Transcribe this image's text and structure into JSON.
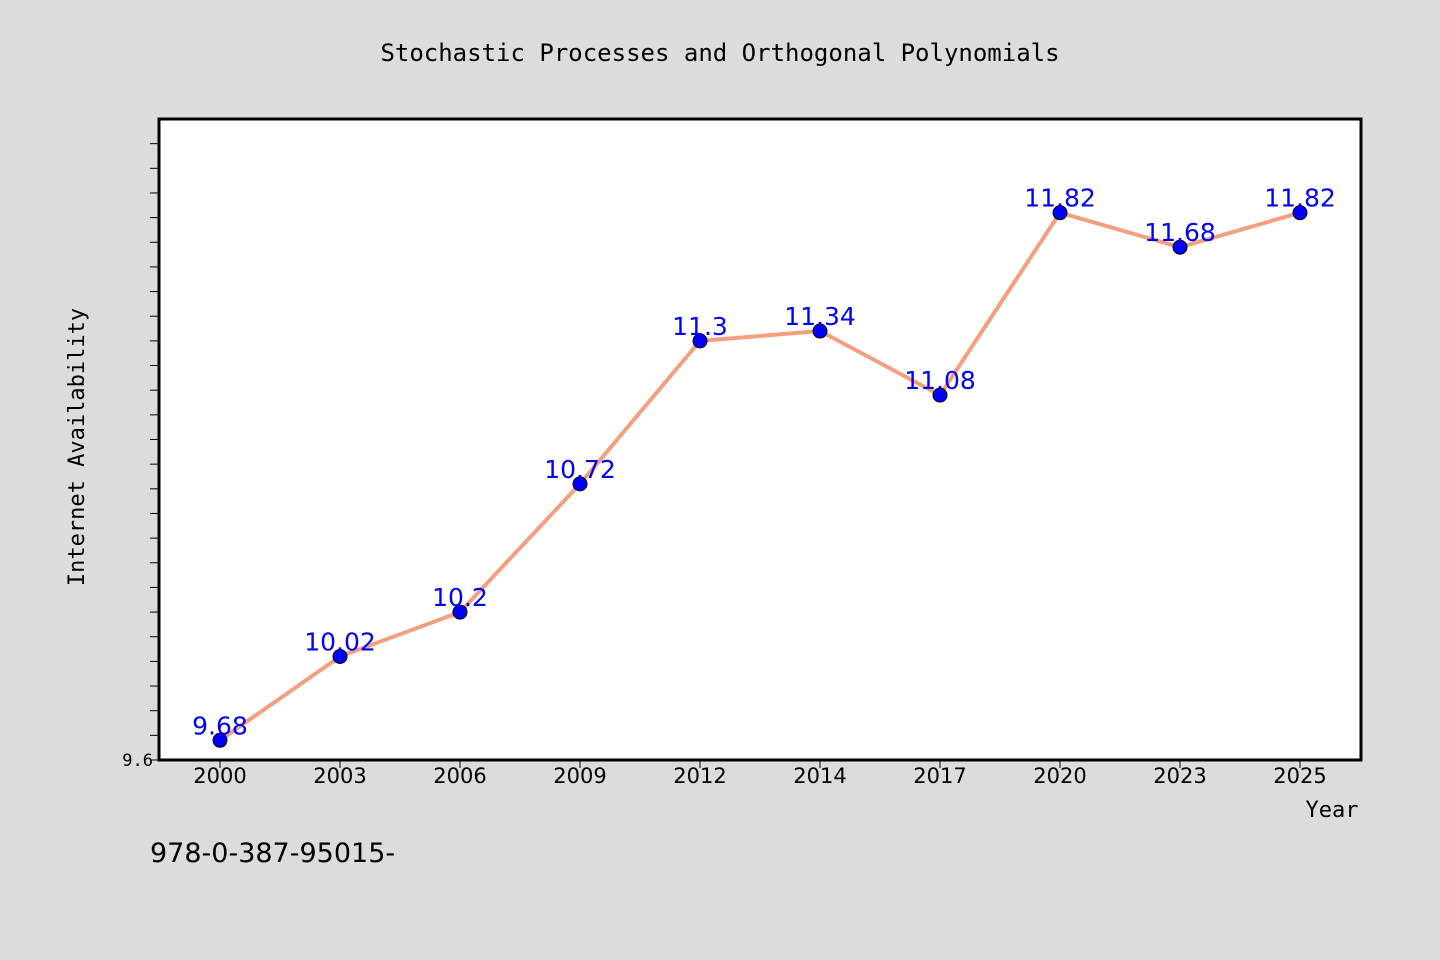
{
  "footer_text": "978-0-387-95015-",
  "colors": {
    "background": "#dcdcdc",
    "plot_background": "#ffffff",
    "line": "#f4a080",
    "marker": "#0000ff",
    "data_label": "#0000ff"
  },
  "chart_data": {
    "type": "line",
    "title": "Stochastic Processes and Orthogonal Polynomials",
    "xlabel": "Year",
    "ylabel": "Internet Availability",
    "categories": [
      "2000",
      "2003",
      "2006",
      "2009",
      "2012",
      "2014",
      "2017",
      "2020",
      "2023",
      "2025"
    ],
    "series": [
      {
        "values": [
          9.68,
          10.02,
          10.2,
          10.72,
          11.3,
          11.34,
          11.08,
          11.82,
          11.68,
          11.82
        ]
      }
    ],
    "data_labels": [
      "9.68",
      "10.02",
      "10.2",
      "10.72",
      "11.3",
      "11.34",
      "11.08",
      "11.82",
      "11.68",
      "11.82"
    ],
    "y_tick_labels": [
      "9.6"
    ],
    "ylim": [
      9.6,
      12.2
    ],
    "y_minor_step": 0.1,
    "grid": false,
    "legend": "none"
  }
}
